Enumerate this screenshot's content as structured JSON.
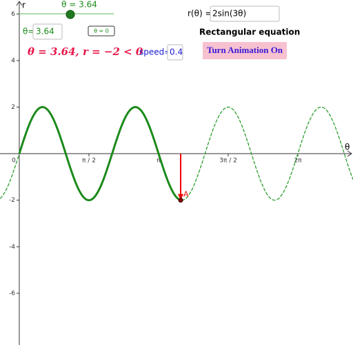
{
  "slider": {
    "label": "θ = 3.64"
  },
  "theta_input": {
    "label": "θ=",
    "value": "3.64"
  },
  "reset_button": "θ = 0",
  "function_input": {
    "label": "r(θ) =",
    "value": "2sin(3θ)"
  },
  "rect_title": "Rectangular equation",
  "status": "θ = 3.64, r = −2 < 0",
  "speed": {
    "label": "speed=",
    "value": "0.4"
  },
  "animation_button": "Turn Animation On",
  "graph": {
    "x_label": "θ",
    "y_label": "r",
    "xlim": [
      -0.435,
      7.527
    ],
    "ylim": [
      -8.22,
      6.6
    ],
    "xticks": [
      {
        "value": 0,
        "label": "0"
      },
      {
        "value": 1.5708,
        "label": "π / 2"
      },
      {
        "value": 3.1416,
        "label": "π"
      },
      {
        "value": 4.7124,
        "label": "3π / 2"
      },
      {
        "value": 6.2832,
        "label": "2π"
      }
    ],
    "yticks": [
      6,
      4,
      2,
      -2,
      -4,
      -6
    ],
    "point": {
      "label": "A",
      "x": 3.64,
      "y": -2
    }
  }
}
